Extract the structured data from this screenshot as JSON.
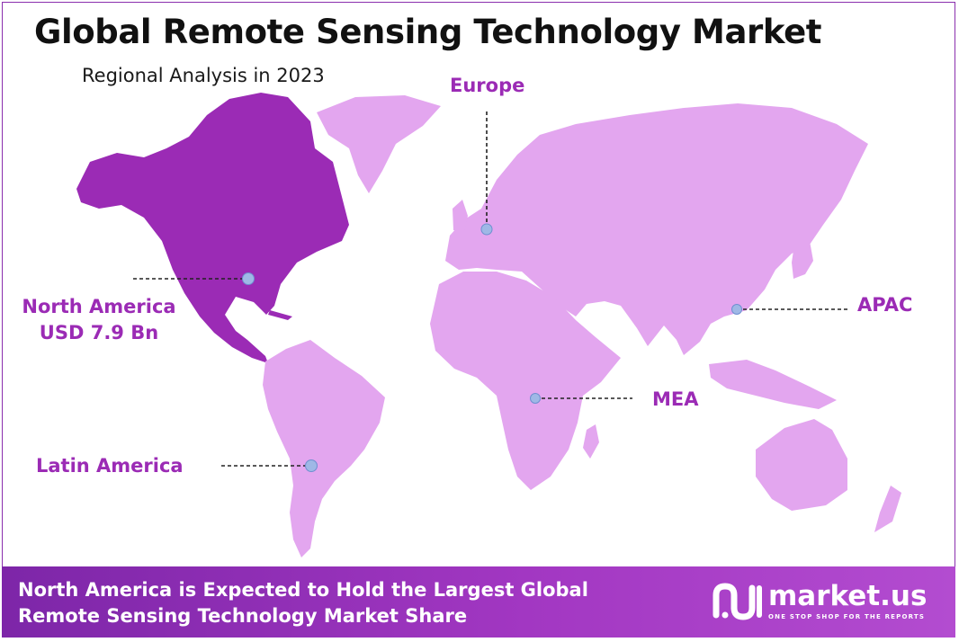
{
  "header": {
    "title": "Global Remote Sensing Technology Market",
    "subtitle": "Regional Analysis in 2023"
  },
  "regions": {
    "north_america": {
      "name": "North America",
      "value": "USD 7.9 Bn",
      "highlighted": true
    },
    "europe": {
      "name": "Europe"
    },
    "apac": {
      "name": "APAC"
    },
    "mea": {
      "name": "MEA"
    },
    "latin_america": {
      "name": "Latin America"
    }
  },
  "banner": {
    "line1": "North America is Expected to Hold the Largest Global",
    "line2": "Remote Sensing Technology Market Share"
  },
  "logo": {
    "name": "market.us",
    "tagline": "ONE STOP SHOP FOR THE REPORTS"
  },
  "colors": {
    "highlight": "#9b2bb5",
    "land": "#e3a6ef",
    "banner": "#8e2fb6",
    "marker": "#9fb8e6"
  }
}
